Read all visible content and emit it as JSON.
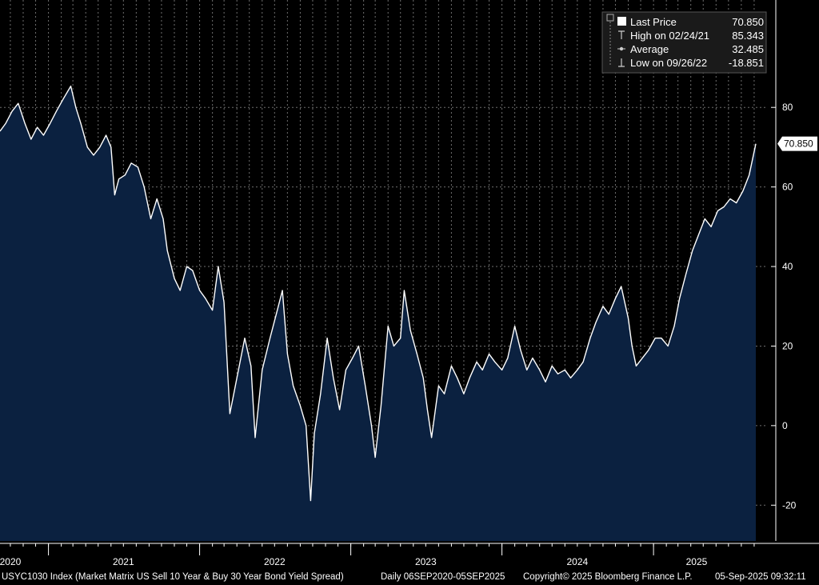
{
  "chart_data": {
    "type": "area",
    "xlim": [
      "2020-09-06",
      "2025-09-05"
    ],
    "ylim": [
      -29,
      107
    ],
    "y_ticks": [
      -20,
      0,
      20,
      40,
      60,
      80
    ],
    "x_ticks": [
      {
        "date": "2020-10-01",
        "label": "2020"
      },
      {
        "date": "2021-07-01",
        "label": "2021"
      },
      {
        "date": "2022-07-01",
        "label": "2022"
      },
      {
        "date": "2023-07-01",
        "label": "2023"
      },
      {
        "date": "2024-07-01",
        "label": "2024"
      },
      {
        "date": "2025-04-15",
        "label": "2025"
      }
    ],
    "year_boundaries": [
      "2021-01-01",
      "2022-01-01",
      "2023-01-01",
      "2024-01-01",
      "2025-01-01"
    ],
    "grid": true,
    "colors": {
      "fill": "#0b2140",
      "line": "#ffffff",
      "grid": "#6e6e6e",
      "background": "#000000"
    },
    "series": [
      {
        "name": "USYC1030 Index",
        "points": [
          [
            "2020-09-06",
            74
          ],
          [
            "2020-09-20",
            76
          ],
          [
            "2020-10-05",
            79
          ],
          [
            "2020-10-20",
            81
          ],
          [
            "2020-11-05",
            76
          ],
          [
            "2020-11-20",
            72
          ],
          [
            "2020-12-05",
            75
          ],
          [
            "2020-12-20",
            73
          ],
          [
            "2021-01-05",
            76
          ],
          [
            "2021-01-20",
            79
          ],
          [
            "2021-02-05",
            82
          ],
          [
            "2021-02-24",
            85.343
          ],
          [
            "2021-03-08",
            80
          ],
          [
            "2021-03-20",
            76
          ],
          [
            "2021-04-05",
            70
          ],
          [
            "2021-04-20",
            68
          ],
          [
            "2021-05-05",
            70
          ],
          [
            "2021-05-20",
            73
          ],
          [
            "2021-06-01",
            70
          ],
          [
            "2021-06-10",
            58
          ],
          [
            "2021-06-20",
            62
          ],
          [
            "2021-07-05",
            63
          ],
          [
            "2021-07-20",
            66
          ],
          [
            "2021-08-05",
            65
          ],
          [
            "2021-08-20",
            60
          ],
          [
            "2021-09-05",
            52
          ],
          [
            "2021-09-20",
            57
          ],
          [
            "2021-10-05",
            52
          ],
          [
            "2021-10-15",
            44
          ],
          [
            "2021-11-01",
            37
          ],
          [
            "2021-11-15",
            34
          ],
          [
            "2021-12-01",
            40
          ],
          [
            "2021-12-15",
            39
          ],
          [
            "2022-01-01",
            34
          ],
          [
            "2022-01-15",
            32
          ],
          [
            "2022-02-01",
            29
          ],
          [
            "2022-02-15",
            40
          ],
          [
            "2022-03-01",
            31
          ],
          [
            "2022-03-15",
            3
          ],
          [
            "2022-04-01",
            12
          ],
          [
            "2022-04-20",
            22
          ],
          [
            "2022-05-05",
            15
          ],
          [
            "2022-05-15",
            -3
          ],
          [
            "2022-06-01",
            14
          ],
          [
            "2022-06-20",
            22
          ],
          [
            "2022-07-05",
            28
          ],
          [
            "2022-07-20",
            34
          ],
          [
            "2022-08-01",
            18
          ],
          [
            "2022-08-15",
            10
          ],
          [
            "2022-09-01",
            5
          ],
          [
            "2022-09-15",
            0
          ],
          [
            "2022-09-26",
            -18.851
          ],
          [
            "2022-10-05",
            -2
          ],
          [
            "2022-10-20",
            8
          ],
          [
            "2022-11-05",
            22
          ],
          [
            "2022-11-20",
            12
          ],
          [
            "2022-12-05",
            4
          ],
          [
            "2022-12-20",
            14
          ],
          [
            "2023-01-05",
            17
          ],
          [
            "2023-01-20",
            20
          ],
          [
            "2023-02-05",
            10
          ],
          [
            "2023-02-20",
            0
          ],
          [
            "2023-03-01",
            -8
          ],
          [
            "2023-03-15",
            5
          ],
          [
            "2023-04-01",
            25
          ],
          [
            "2023-04-15",
            20
          ],
          [
            "2023-05-01",
            22
          ],
          [
            "2023-05-10",
            34
          ],
          [
            "2023-05-25",
            24
          ],
          [
            "2023-06-10",
            18
          ],
          [
            "2023-06-25",
            12
          ],
          [
            "2023-07-05",
            4
          ],
          [
            "2023-07-15",
            -3
          ],
          [
            "2023-08-01",
            10
          ],
          [
            "2023-08-15",
            8
          ],
          [
            "2023-09-01",
            15
          ],
          [
            "2023-09-15",
            12
          ],
          [
            "2023-10-01",
            8
          ],
          [
            "2023-10-15",
            12
          ],
          [
            "2023-11-01",
            16
          ],
          [
            "2023-11-15",
            14
          ],
          [
            "2023-12-01",
            18
          ],
          [
            "2023-12-15",
            16
          ],
          [
            "2024-01-01",
            14
          ],
          [
            "2024-01-15",
            17
          ],
          [
            "2024-02-01",
            25
          ],
          [
            "2024-02-15",
            19
          ],
          [
            "2024-03-01",
            14
          ],
          [
            "2024-03-15",
            17
          ],
          [
            "2024-04-01",
            14
          ],
          [
            "2024-04-15",
            11
          ],
          [
            "2024-05-01",
            15
          ],
          [
            "2024-05-15",
            13
          ],
          [
            "2024-06-01",
            14
          ],
          [
            "2024-06-15",
            12
          ],
          [
            "2024-07-01",
            14
          ],
          [
            "2024-07-15",
            16
          ],
          [
            "2024-08-01",
            22
          ],
          [
            "2024-08-15",
            26
          ],
          [
            "2024-09-01",
            30
          ],
          [
            "2024-09-15",
            28
          ],
          [
            "2024-10-01",
            32
          ],
          [
            "2024-10-15",
            35
          ],
          [
            "2024-11-01",
            27
          ],
          [
            "2024-11-10",
            20
          ],
          [
            "2024-11-20",
            15
          ],
          [
            "2024-12-05",
            17
          ],
          [
            "2024-12-20",
            19
          ],
          [
            "2025-01-05",
            22
          ],
          [
            "2025-01-20",
            22
          ],
          [
            "2025-02-05",
            20
          ],
          [
            "2025-02-20",
            25
          ],
          [
            "2025-03-05",
            32
          ],
          [
            "2025-03-20",
            38
          ],
          [
            "2025-04-05",
            44
          ],
          [
            "2025-04-20",
            48
          ],
          [
            "2025-05-05",
            52
          ],
          [
            "2025-05-20",
            50
          ],
          [
            "2025-06-05",
            54
          ],
          [
            "2025-06-20",
            55
          ],
          [
            "2025-07-05",
            57
          ],
          [
            "2025-07-20",
            56
          ],
          [
            "2025-08-05",
            59
          ],
          [
            "2025-08-20",
            63
          ],
          [
            "2025-09-05",
            70.85
          ]
        ]
      }
    ],
    "legend": {
      "placement": "top-right",
      "entries": [
        {
          "label": "Last Price",
          "value": "70.850",
          "icon": "filled-square-icon"
        },
        {
          "label": "High on 02/24/21",
          "value": "85.343",
          "icon": "high-marker-icon"
        },
        {
          "label": "Average",
          "value": "32.485",
          "icon": "average-marker-icon"
        },
        {
          "label": "Low on 09/26/22",
          "value": "-18.851",
          "icon": "low-marker-icon"
        }
      ]
    },
    "last_price_label": "70.850",
    "last_price_value": 70.85
  },
  "footer": {
    "security": "USYC1030 Index (Market Matrix US Sell 10 Year & Buy 30 Year Bond Yield Spread)",
    "range": "Daily 06SEP2020-05SEP2025",
    "copyright": "Copyright© 2025 Bloomberg Finance L.P.",
    "timestamp": "05-Sep-2025 09:32:11"
  }
}
